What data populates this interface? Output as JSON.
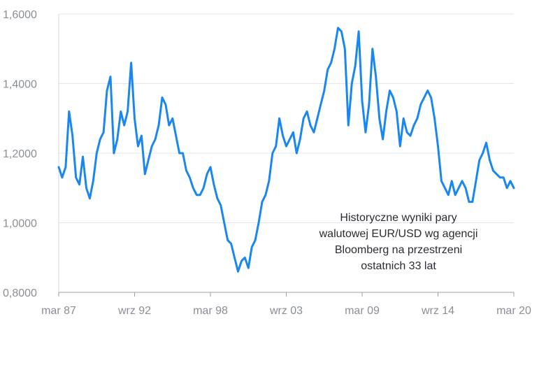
{
  "chart_data": {
    "type": "line",
    "title": "",
    "xlabel": "",
    "ylabel": "",
    "x_ticks": [
      "mar 87",
      "wrz 92",
      "mar 98",
      "wrz 03",
      "mar 09",
      "wrz 14",
      "mar 20"
    ],
    "y_ticks": [
      "0,8000",
      "1,0000",
      "1,2000",
      "1,4000",
      "1,6000"
    ],
    "ylim": [
      0.8,
      1.6
    ],
    "xlim": [
      1987.17,
      2020.17
    ],
    "grid": true,
    "line_color": "#1a87f0",
    "annotation": [
      "Historyczne wyniki pary",
      "walutowej EUR/USD wg agencji",
      "Bloomberg na przestrzeni",
      "ostatnich 33 lat"
    ],
    "series": [
      {
        "x": [
          1987.17,
          1987.42,
          1987.67,
          1987.92,
          1988.17,
          1988.42,
          1988.67,
          1988.92,
          1989.17,
          1989.42,
          1989.67,
          1989.92,
          1990.17,
          1990.42,
          1990.67,
          1990.92,
          1991.17,
          1991.42,
          1991.67,
          1991.92,
          1992.17,
          1992.42,
          1992.67,
          1992.92,
          1993.17,
          1993.42,
          1993.67,
          1993.92,
          1994.17,
          1994.42,
          1994.67,
          1994.92,
          1995.17,
          1995.42,
          1995.67,
          1995.92,
          1996.17,
          1996.42,
          1996.67,
          1996.92,
          1997.17,
          1997.42,
          1997.67,
          1997.92,
          1998.17,
          1998.42,
          1998.67,
          1998.92,
          1999.17,
          1999.42,
          1999.67,
          1999.92,
          2000.17,
          2000.42,
          2000.67,
          2000.92,
          2001.17,
          2001.42,
          2001.67,
          2001.92,
          2002.17,
          2002.42,
          2002.67,
          2002.92,
          2003.17,
          2003.42,
          2003.67,
          2003.92,
          2004.17,
          2004.42,
          2004.67,
          2004.92,
          2005.17,
          2005.42,
          2005.67,
          2005.92,
          2006.17,
          2006.42,
          2006.67,
          2006.92,
          2007.17,
          2007.42,
          2007.67,
          2007.92,
          2008.17,
          2008.42,
          2008.67,
          2008.92,
          2009.17,
          2009.42,
          2009.67,
          2009.92,
          2010.17,
          2010.42,
          2010.67,
          2010.92,
          2011.17,
          2011.42,
          2011.67,
          2011.92,
          2012.17,
          2012.42,
          2012.67,
          2012.92,
          2013.17,
          2013.42,
          2013.67,
          2013.92,
          2014.17,
          2014.42,
          2014.67,
          2014.92,
          2015.17,
          2015.42,
          2015.67,
          2015.92,
          2016.17,
          2016.42,
          2016.67,
          2016.92,
          2017.17,
          2017.42,
          2017.67,
          2017.92,
          2018.17,
          2018.42,
          2018.67,
          2018.92,
          2019.17,
          2019.42,
          2019.67,
          2019.92,
          2020.17
        ],
        "y": [
          1.16,
          1.13,
          1.16,
          1.32,
          1.25,
          1.13,
          1.11,
          1.19,
          1.1,
          1.07,
          1.12,
          1.2,
          1.24,
          1.26,
          1.38,
          1.42,
          1.2,
          1.24,
          1.32,
          1.28,
          1.32,
          1.46,
          1.3,
          1.22,
          1.25,
          1.14,
          1.18,
          1.22,
          1.24,
          1.28,
          1.36,
          1.34,
          1.28,
          1.3,
          1.25,
          1.2,
          1.2,
          1.15,
          1.13,
          1.1,
          1.08,
          1.08,
          1.1,
          1.14,
          1.16,
          1.11,
          1.07,
          1.05,
          1.0,
          0.95,
          0.94,
          0.9,
          0.86,
          0.89,
          0.9,
          0.87,
          0.93,
          0.95,
          1.0,
          1.06,
          1.08,
          1.12,
          1.2,
          1.22,
          1.3,
          1.25,
          1.22,
          1.24,
          1.26,
          1.2,
          1.24,
          1.3,
          1.32,
          1.28,
          1.26,
          1.3,
          1.34,
          1.38,
          1.44,
          1.46,
          1.5,
          1.56,
          1.55,
          1.5,
          1.28,
          1.4,
          1.45,
          1.55,
          1.35,
          1.26,
          1.34,
          1.5,
          1.42,
          1.3,
          1.24,
          1.32,
          1.38,
          1.36,
          1.32,
          1.22,
          1.3,
          1.26,
          1.25,
          1.28,
          1.3,
          1.34,
          1.36,
          1.38,
          1.36,
          1.3,
          1.22,
          1.12,
          1.1,
          1.08,
          1.12,
          1.08,
          1.1,
          1.12,
          1.1,
          1.06,
          1.06,
          1.12,
          1.18,
          1.2,
          1.23,
          1.18,
          1.15,
          1.14,
          1.13,
          1.13,
          1.1,
          1.12,
          1.1
        ]
      }
    ]
  }
}
